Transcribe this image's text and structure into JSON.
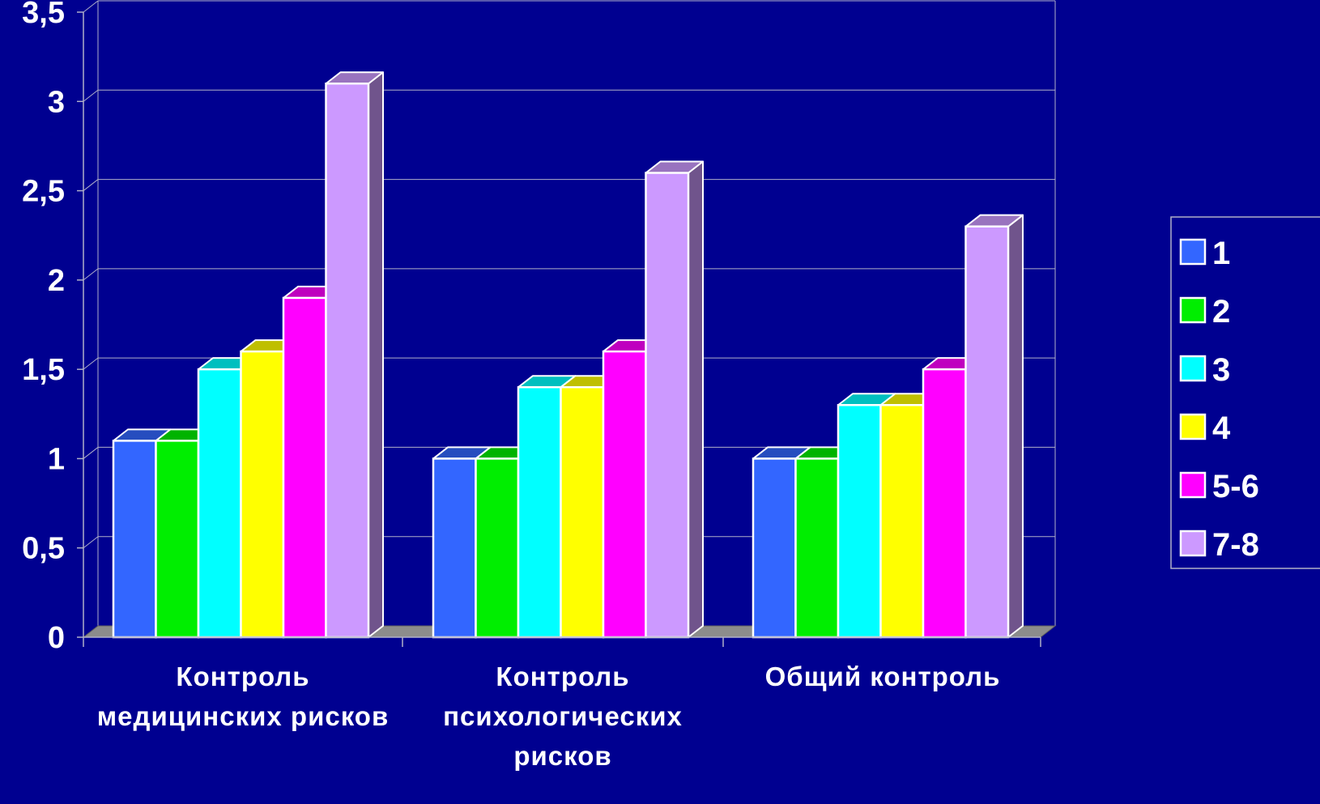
{
  "chart_data": {
    "type": "bar",
    "title": "",
    "xlabel": "",
    "ylabel": "",
    "categories": [
      [
        "Контроль",
        "медицинских рисков"
      ],
      [
        "Контроль",
        "психологических",
        "рисков"
      ],
      [
        "Общий контроль"
      ]
    ],
    "y_ticks": [
      "0",
      "0,5",
      "1",
      "1,5",
      "2",
      "2,5",
      "3",
      "3,5"
    ],
    "ylim": [
      0,
      3.5
    ],
    "grid": true,
    "legend_position": "right",
    "series": [
      {
        "name": "1",
        "color": "#3366ff",
        "values": [
          1.1,
          1.0,
          1.0
        ]
      },
      {
        "name": "2",
        "color": "#00ee00",
        "values": [
          1.1,
          1.0,
          1.0
        ]
      },
      {
        "name": "3",
        "color": "#00ffff",
        "values": [
          1.5,
          1.4,
          1.3
        ]
      },
      {
        "name": "4",
        "color": "#ffff00",
        "values": [
          1.6,
          1.4,
          1.3
        ]
      },
      {
        "name": "5-6",
        "color": "#ff00ff",
        "values": [
          1.9,
          1.6,
          1.5
        ]
      },
      {
        "name": "7-8",
        "color": "#cc99ff",
        "values": [
          3.1,
          2.6,
          2.3
        ]
      }
    ]
  }
}
